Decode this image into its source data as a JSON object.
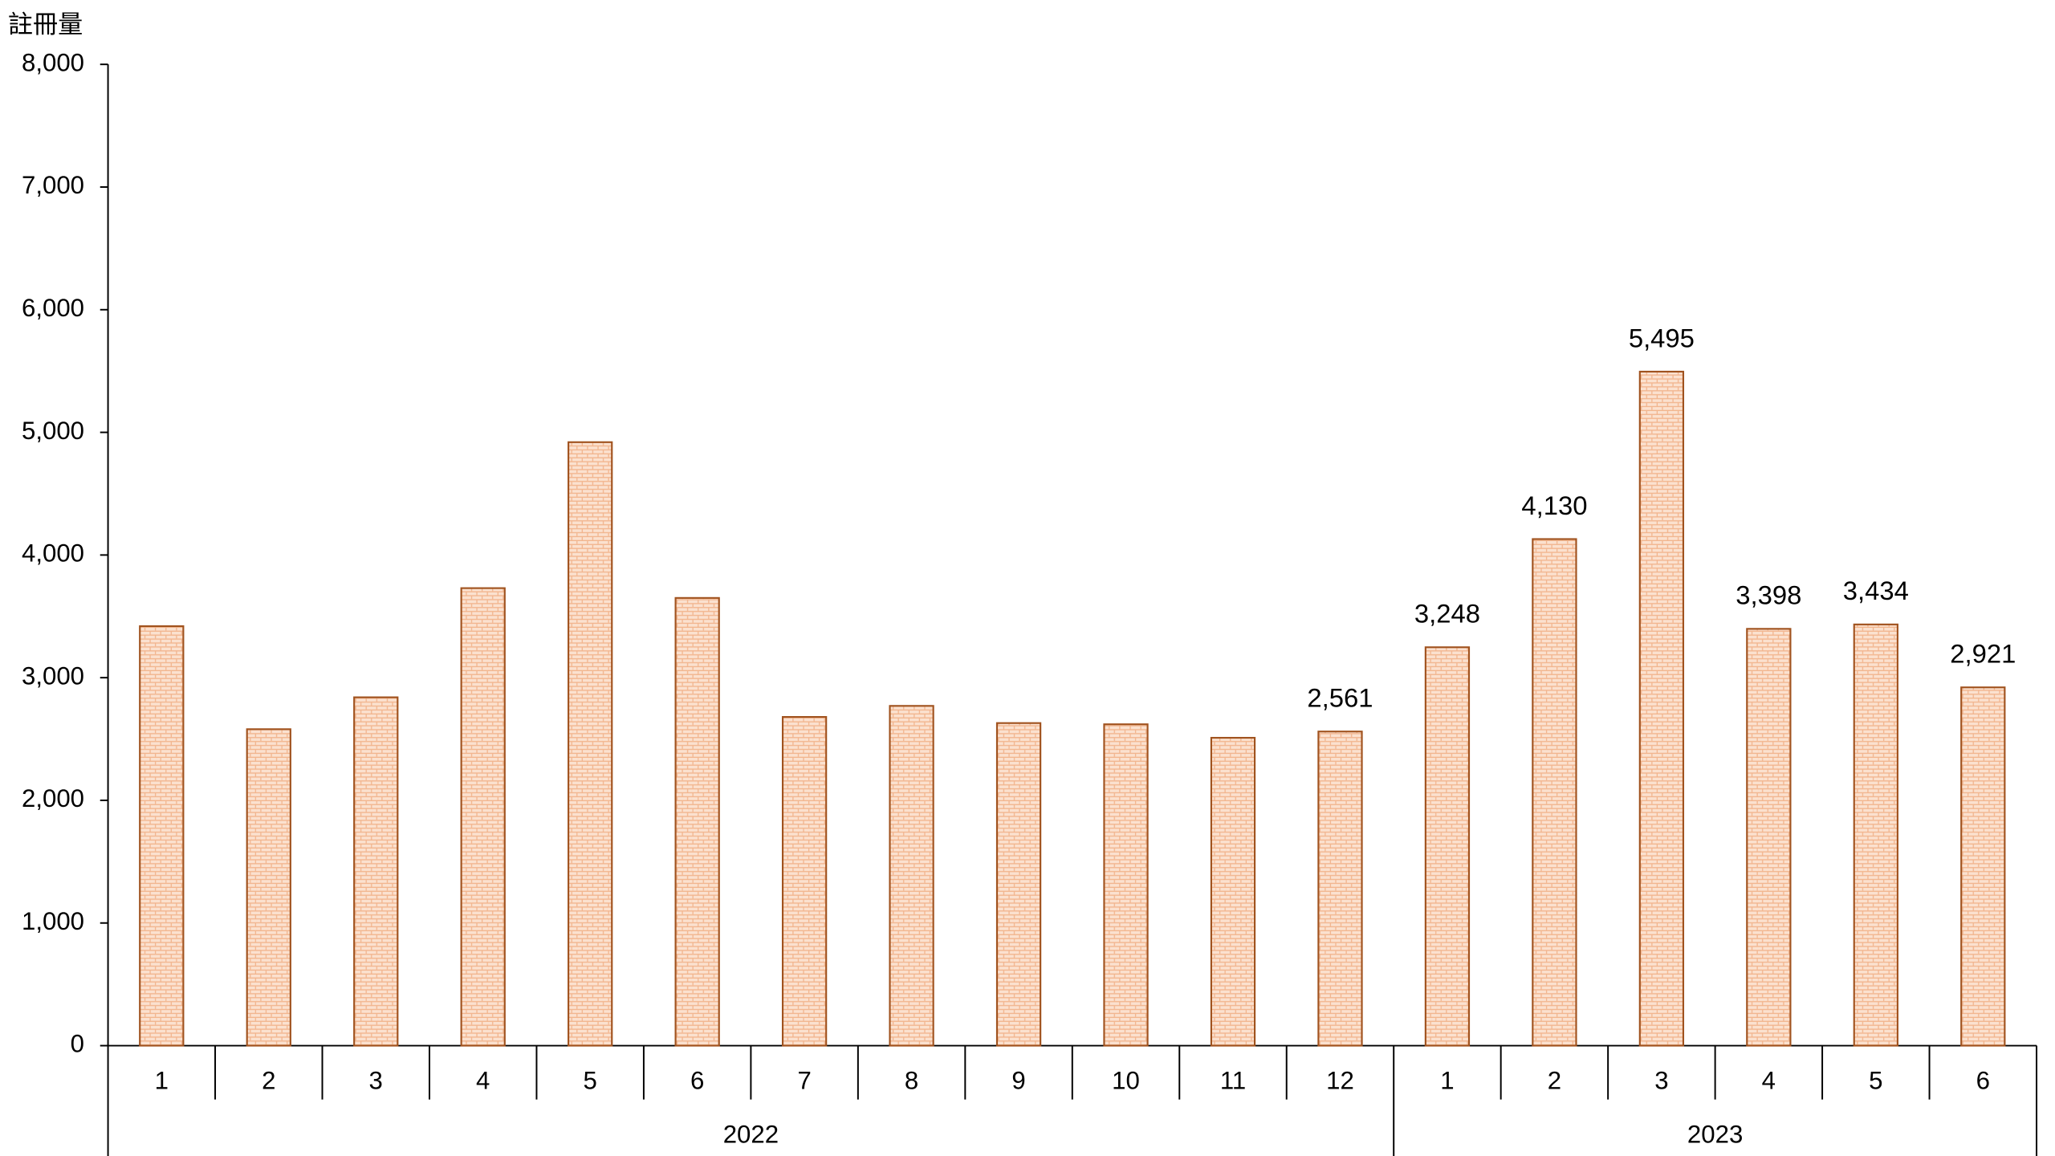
{
  "chart_data": {
    "type": "bar",
    "y_label": "註冊量",
    "categories": [
      "1",
      "2",
      "3",
      "4",
      "5",
      "6",
      "7",
      "8",
      "9",
      "10",
      "11",
      "12",
      "1",
      "2",
      "3",
      "4",
      "5",
      "6"
    ],
    "groups": [
      "2022",
      "2023"
    ],
    "values": [
      3420,
      2580,
      2840,
      3730,
      4920,
      3650,
      2680,
      2770,
      2630,
      2620,
      2510,
      2561,
      3248,
      4130,
      5495,
      3398,
      3434,
      2921
    ],
    "value_labels": [
      null,
      null,
      null,
      null,
      null,
      null,
      null,
      null,
      null,
      null,
      null,
      "2,561",
      "3,248",
      "4,130",
      "5,495",
      "3,398",
      "3,434",
      "2,921"
    ],
    "color": "#fbe1cf",
    "edge_color": "#a0521e",
    "ylim": [
      0,
      8000
    ],
    "yticks": [
      0,
      {
        "value": 1000,
        "label": "1,000"
      },
      {
        "value": 2000,
        "label": "2,000"
      },
      {
        "value": 3000,
        "label": "3,000"
      },
      {
        "value": 4000,
        "label": "4,000"
      },
      {
        "value": 5000,
        "label": "5,000"
      },
      {
        "value": 6000,
        "label": "6,000"
      },
      {
        "value": 7000,
        "label": "7,000"
      },
      {
        "value": 8000,
        "label": "8,000"
      }
    ],
    "grid": false
  }
}
